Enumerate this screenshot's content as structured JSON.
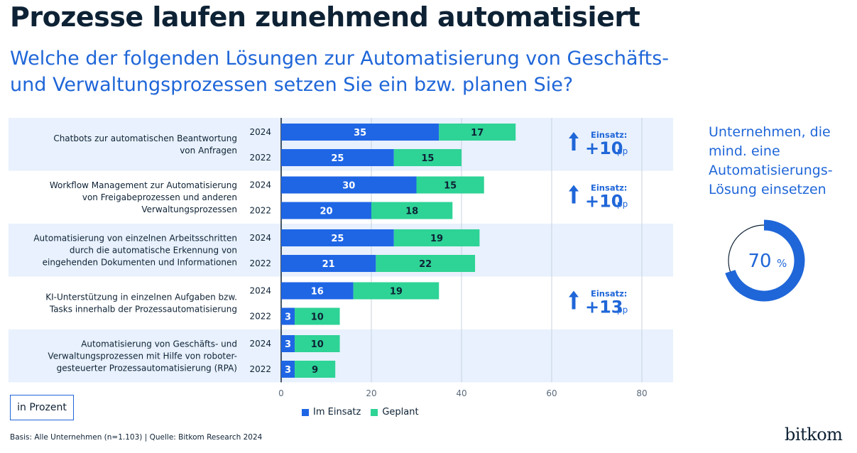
{
  "title": "Prozesse laufen zunehmend automatisiert",
  "subtitle": "Welche der folgenden Lösungen zur Automatisierung von Geschäfts- und Verwaltungsprozessen setzen Sie ein bzw. planen Sie?",
  "unit_label": "in Prozent",
  "footer": "Basis: Alle Unternehmen (n=1.103) | Quelle: Bitkom Research 2024",
  "logo": "bitkom",
  "stat": {
    "text": "Unternehmen, die mind. eine Automatisierungs-Lösung einsetzen",
    "value": 70,
    "value_label": "70",
    "unit": "%"
  },
  "colors": {
    "in_use": "#1f66e5",
    "planned": "#2ed396",
    "band": "#e8f1fd",
    "accent": "#1f66d8"
  },
  "chart_data": {
    "type": "bar",
    "orientation": "horizontal",
    "stacked": true,
    "xlim": [
      0,
      80
    ],
    "xticks": [
      0,
      20,
      40,
      60,
      80
    ],
    "legend": [
      "Im Einsatz",
      "Geplant"
    ],
    "legend_position": "bottom",
    "categories": [
      {
        "label": "Chatbots zur automatischen Beantwortung von Anfragen",
        "lines": [
          "Chatbots zur automatischen Beantwortung",
          "von Anfragen"
        ],
        "rows": [
          {
            "year": "2024",
            "im_einsatz": 35,
            "geplant": 17
          },
          {
            "year": "2022",
            "im_einsatz": 25,
            "geplant": 15
          }
        ],
        "change": {
          "label": "Einsatz:",
          "value": "+10",
          "unit": "pp"
        }
      },
      {
        "label": "Workflow Management zur Automatisierung von Freigabeprozessen und anderen Verwaltungsprozessen",
        "lines": [
          "Workflow Management zur Automatisierung",
          "von Freigabeprozessen und anderen",
          "Verwaltungsprozessen"
        ],
        "rows": [
          {
            "year": "2024",
            "im_einsatz": 30,
            "geplant": 15
          },
          {
            "year": "2022",
            "im_einsatz": 20,
            "geplant": 18
          }
        ],
        "change": {
          "label": "Einsatz:",
          "value": "+10",
          "unit": "pp"
        }
      },
      {
        "label": "Automatisierung von einzelnen Arbeitsschritten durch die automatische Erkennung von eingehenden Dokumenten und Informationen",
        "lines": [
          "Automatisierung von einzelnen Arbeitsschritten",
          "durch die automatische Erkennung von",
          "eingehenden Dokumenten und Informationen"
        ],
        "rows": [
          {
            "year": "2024",
            "im_einsatz": 25,
            "geplant": 19
          },
          {
            "year": "2022",
            "im_einsatz": 21,
            "geplant": 22
          }
        ],
        "change": null
      },
      {
        "label": "KI-Unterstützung in einzelnen Aufgaben bzw. Tasks innerhalb der Prozessautomatisierung",
        "lines": [
          "KI-Unterstützung in einzelnen Aufgaben bzw.",
          "Tasks innerhalb der Prozessautomatisierung"
        ],
        "rows": [
          {
            "year": "2024",
            "im_einsatz": 16,
            "geplant": 19
          },
          {
            "year": "2022",
            "im_einsatz": 3,
            "geplant": 10
          }
        ],
        "change": {
          "label": "Einsatz:",
          "value": "+13",
          "unit": "pp"
        }
      },
      {
        "label": "Automatisierung von Geschäfts- und Verwaltungsprozessen mit Hilfe von roboter-gesteuerter Prozessautomatisierung (RPA)",
        "lines": [
          "Automatisierung von Geschäfts- und",
          "Verwaltungsprozessen mit Hilfe von roboter-",
          "gesteuerter Prozessautomatisierung (RPA)"
        ],
        "rows": [
          {
            "year": "2024",
            "im_einsatz": 3,
            "geplant": 10
          },
          {
            "year": "2022",
            "im_einsatz": 3,
            "geplant": 9
          }
        ],
        "change": null
      }
    ]
  }
}
